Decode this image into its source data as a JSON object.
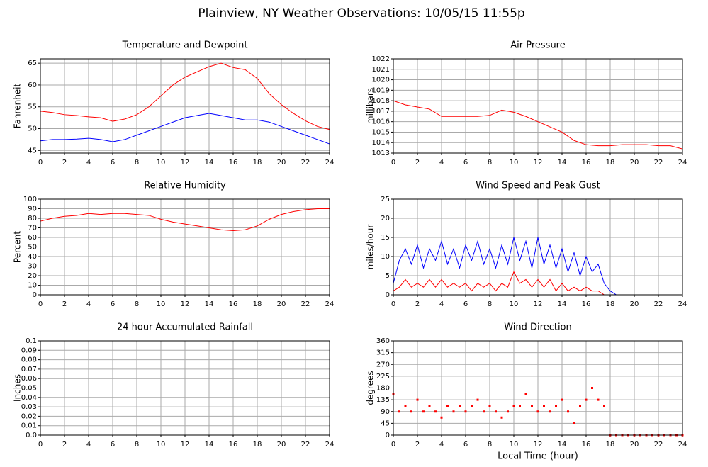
{
  "title": "Plainview, NY Weather Observations: 10/05/15 11:55p",
  "chart_data": [
    {
      "type": "line",
      "title": "Temperature and Dewpoint",
      "y_label": "Fahrenheit",
      "xlim": [
        0,
        24
      ],
      "xticks": [
        0,
        2,
        4,
        6,
        8,
        10,
        12,
        14,
        16,
        18,
        20,
        22,
        24
      ],
      "ylim": [
        44.4,
        66
      ],
      "yticks": [
        45,
        50,
        55,
        60,
        65
      ],
      "grid": true,
      "x": [
        0,
        1,
        2,
        3,
        4,
        5,
        6,
        7,
        8,
        9,
        10,
        11,
        12,
        13,
        14,
        15,
        16,
        17,
        18,
        19,
        20,
        21,
        22,
        23,
        24
      ],
      "series": [
        {
          "color": "#ff0000",
          "values": [
            54,
            53.7,
            53.2,
            53,
            52.7,
            52.5,
            51.7,
            52.2,
            53.2,
            55,
            57.5,
            60,
            61.8,
            63,
            64.2,
            65,
            64,
            63.5,
            61.5,
            58,
            55.5,
            53.5,
            51.8,
            50.5,
            49.8
          ]
        },
        {
          "color": "#0000ff",
          "values": [
            47.2,
            47.5,
            47.5,
            47.6,
            47.8,
            47.5,
            47,
            47.5,
            48.5,
            49.5,
            50.5,
            51.5,
            52.5,
            53,
            53.5,
            53,
            52.5,
            52,
            52,
            51.5,
            50.5,
            49.5,
            48.5,
            47.5,
            46.5
          ]
        }
      ]
    },
    {
      "type": "line",
      "title": "Air Pressure",
      "y_label": "millibars",
      "xlim": [
        0,
        24
      ],
      "xticks": [
        0,
        2,
        4,
        6,
        8,
        10,
        12,
        14,
        16,
        18,
        20,
        22,
        24
      ],
      "ylim": [
        1013,
        1022
      ],
      "yticks": [
        1013,
        1014,
        1015,
        1016,
        1017,
        1018,
        1019,
        1020,
        1021,
        1022
      ],
      "grid": true,
      "x": [
        0,
        1,
        2,
        3,
        4,
        5,
        6,
        7,
        8,
        9,
        10,
        11,
        12,
        13,
        14,
        15,
        16,
        17,
        18,
        19,
        20,
        21,
        22,
        23,
        24
      ],
      "series": [
        {
          "color": "#ff0000",
          "values": [
            1018,
            1017.6,
            1017.4,
            1017.2,
            1016.5,
            1016.5,
            1016.5,
            1016.5,
            1016.6,
            1017.1,
            1016.9,
            1016.5,
            1016,
            1015.5,
            1015,
            1014.2,
            1013.8,
            1013.7,
            1013.7,
            1013.8,
            1013.8,
            1013.8,
            1013.7,
            1013.7,
            1013.4
          ]
        }
      ]
    },
    {
      "type": "line",
      "title": "Relative Humidity",
      "y_label": "Percent",
      "xlim": [
        0,
        24
      ],
      "xticks": [
        0,
        2,
        4,
        6,
        8,
        10,
        12,
        14,
        16,
        18,
        20,
        22,
        24
      ],
      "ylim": [
        0,
        100
      ],
      "yticks": [
        0,
        10,
        20,
        30,
        40,
        50,
        60,
        70,
        80,
        90,
        100
      ],
      "grid": true,
      "x": [
        0,
        1,
        2,
        3,
        4,
        5,
        6,
        7,
        8,
        9,
        10,
        11,
        12,
        13,
        14,
        15,
        16,
        17,
        18,
        19,
        20,
        21,
        22,
        23,
        24
      ],
      "series": [
        {
          "color": "#ff0000",
          "values": [
            77,
            80,
            82,
            83,
            85,
            84,
            85,
            85,
            84,
            83,
            79,
            76,
            74,
            72,
            70,
            68,
            67,
            68,
            72,
            79,
            84,
            87,
            89,
            90,
            90
          ]
        }
      ]
    },
    {
      "type": "line",
      "title": "Wind Speed and Peak Gust",
      "y_label": "miles/hour",
      "xlim": [
        0,
        24
      ],
      "xticks": [
        0,
        2,
        4,
        6,
        8,
        10,
        12,
        14,
        16,
        18,
        20,
        22,
        24
      ],
      "ylim": [
        0,
        25
      ],
      "yticks": [
        0,
        5,
        10,
        15,
        20,
        25
      ],
      "grid": true,
      "x": [
        0,
        0.5,
        1,
        1.5,
        2,
        2.5,
        3,
        3.5,
        4,
        4.5,
        5,
        5.5,
        6,
        6.5,
        7,
        7.5,
        8,
        8.5,
        9,
        9.5,
        10,
        10.5,
        11,
        11.5,
        12,
        12.5,
        13,
        13.5,
        14,
        14.5,
        15,
        15.5,
        16,
        16.5,
        17,
        17.5,
        18,
        18.5,
        19,
        19.5,
        20,
        20.5,
        21,
        21.5,
        22,
        22.5,
        23,
        23.5,
        24
      ],
      "series": [
        {
          "color": "#0000ff",
          "values": [
            3,
            9,
            12,
            8,
            13,
            7,
            12,
            9,
            14,
            8,
            12,
            7,
            13,
            9,
            14,
            8,
            12,
            7,
            13,
            8,
            15,
            9,
            14,
            7,
            15,
            8,
            13,
            7,
            12,
            6,
            11,
            5,
            10,
            6,
            8,
            3,
            1,
            0,
            0,
            0,
            0,
            0,
            0,
            0,
            0,
            0,
            0,
            0,
            0
          ]
        },
        {
          "color": "#ff0000",
          "values": [
            1,
            2,
            4,
            2,
            3,
            2,
            4,
            2,
            4,
            2,
            3,
            2,
            3,
            1,
            3,
            2,
            3,
            1,
            3,
            2,
            6,
            3,
            4,
            2,
            4,
            2,
            4,
            1,
            3,
            1,
            2,
            1,
            2,
            1,
            1,
            0,
            0,
            0,
            0,
            0,
            0,
            0,
            0,
            0,
            0,
            0,
            0,
            0,
            0
          ]
        }
      ]
    },
    {
      "type": "line",
      "title": "24 hour Accumulated Rainfall",
      "y_label": "Inches",
      "xlim": [
        0,
        24
      ],
      "xticks": [
        0,
        2,
        4,
        6,
        8,
        10,
        12,
        14,
        16,
        18,
        20,
        22,
        24
      ],
      "ylim": [
        0,
        0.1
      ],
      "yticks": [
        {
          "value": 0,
          "label": "0.0"
        },
        0.01,
        0.02,
        0.03,
        0.04,
        0.05,
        0.06,
        0.07,
        0.08,
        0.09,
        0.1
      ],
      "grid": true,
      "x": [
        0,
        24
      ],
      "series": [
        {
          "color": "#ff0000",
          "values": [
            0,
            0
          ]
        }
      ]
    },
    {
      "type": "scatter",
      "title": "Wind Direction",
      "y_label": "degrees",
      "x_label": "Local Time (hour)",
      "xlim": [
        0,
        24
      ],
      "xticks": [
        0,
        2,
        4,
        6,
        8,
        10,
        12,
        14,
        16,
        18,
        20,
        22,
        24
      ],
      "ylim": [
        0,
        360
      ],
      "yticks": [
        0,
        45,
        90,
        135,
        180,
        225,
        270,
        315,
        360
      ],
      "grid": true,
      "x": [
        0,
        0.5,
        1,
        1.5,
        2,
        2.5,
        3,
        3.5,
        4,
        4.5,
        5,
        5.5,
        6,
        6.5,
        7,
        7.5,
        8,
        8.5,
        9,
        9.5,
        10,
        10.5,
        11,
        11.5,
        12,
        12.5,
        13,
        13.5,
        14,
        14.5,
        15,
        15.5,
        16,
        16.5,
        17,
        17.5,
        18,
        18.5,
        19,
        19.5,
        20,
        20.5,
        21,
        21.5,
        22,
        22.5,
        23,
        23.5,
        24
      ],
      "series": [
        {
          "color": "#ff0000",
          "values": [
            158,
            90,
            112,
            90,
            135,
            90,
            112,
            90,
            67,
            112,
            90,
            112,
            90,
            112,
            135,
            90,
            112,
            90,
            67,
            90,
            112,
            112,
            158,
            112,
            90,
            112,
            90,
            112,
            135,
            90,
            45,
            112,
            135,
            180,
            135,
            112,
            0,
            0,
            0,
            0,
            0,
            0,
            0,
            0,
            0,
            0,
            0,
            0,
            0
          ]
        }
      ]
    }
  ]
}
